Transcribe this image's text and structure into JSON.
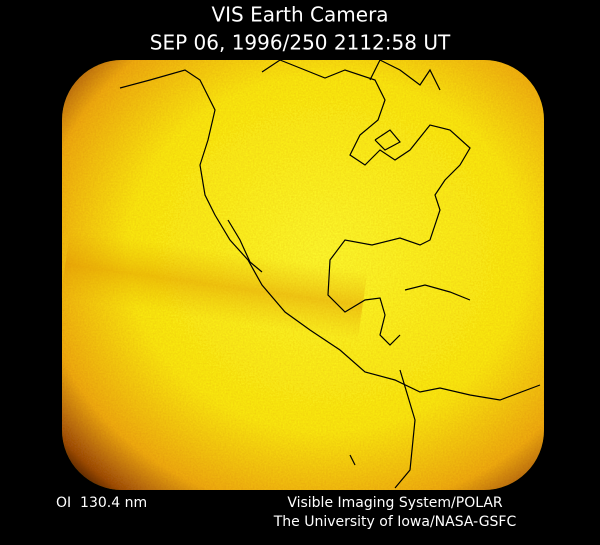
{
  "header": {
    "title": "VIS Earth Camera",
    "timestamp": "SEP 06, 1996/250 2112:58 UT"
  },
  "footer": {
    "wavelength": "OI  130.4 nm",
    "instrument": "Visible Imaging System/POLAR",
    "institution": "The University of Iowa/NASA-GSFC"
  }
}
